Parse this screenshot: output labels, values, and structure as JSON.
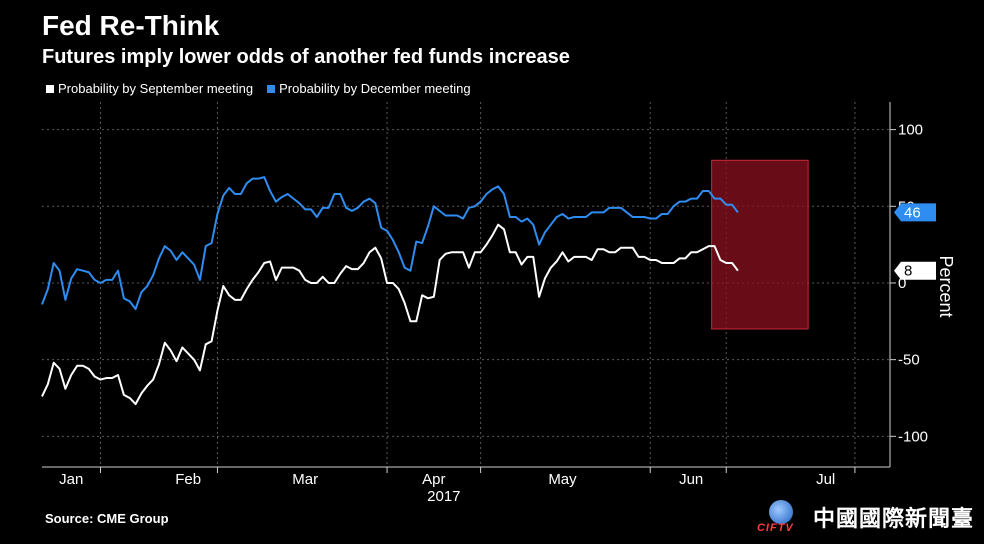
{
  "header": {
    "title": "Fed Re-Think",
    "subtitle": "Futures imply lower odds of another fed funds increase"
  },
  "legend": [
    {
      "label": "Probability by September meeting",
      "color": "#ffffff"
    },
    {
      "label": "Probability by December meeting",
      "color": "#2f8cf0"
    }
  ],
  "source": "Source: CME Group",
  "logo": {
    "abbr": "CIFTV",
    "text": "中國國際新聞臺"
  },
  "chart_data": {
    "type": "line",
    "title": "Fed Re-Think",
    "subtitle": "Futures imply lower odds of another fed funds increase",
    "ylabel": "Percent",
    "ylim": [
      -120,
      118
    ],
    "yticks": [
      {
        "value": 100,
        "label": "100"
      },
      {
        "value": 50,
        "label": "50"
      },
      {
        "value": 0,
        "label": "0"
      },
      {
        "value": -50,
        "label": "-50"
      },
      {
        "value": -100,
        "label": "-100"
      }
    ],
    "xlim": [
      0,
      145
    ],
    "xtick_labels": [
      {
        "x": 5,
        "label": "Jan"
      },
      {
        "x": 25,
        "label": "Feb"
      },
      {
        "x": 45,
        "label": "Mar"
      },
      {
        "x": 67,
        "label": "Apr"
      },
      {
        "x": 89,
        "label": "May"
      },
      {
        "x": 111,
        "label": "Jun"
      },
      {
        "x": 134,
        "label": "Jul"
      }
    ],
    "x_year_label": "2017",
    "month_boundaries": [
      10,
      30,
      59,
      75,
      104,
      117,
      139
    ],
    "highlight": {
      "x0": 114.5,
      "x1": 131,
      "y0": -30,
      "y1": 80,
      "color": "#8b1020"
    },
    "series": [
      {
        "name": "Probability by September meeting",
        "color": "#ffffff",
        "end_label": "8",
        "values": [
          -74,
          -66,
          -52,
          -56,
          -69,
          -60,
          -54,
          -54,
          -56,
          -61,
          -63,
          -62,
          -62,
          -60,
          -73,
          -75,
          -79,
          -72,
          -67,
          -63,
          -53,
          -39,
          -44,
          -51,
          -42,
          -46,
          -50,
          -57,
          -40,
          -38,
          -18,
          -2,
          -8,
          -11,
          -11,
          -4,
          2,
          7,
          13,
          14,
          2,
          10,
          10,
          10,
          8,
          2,
          0,
          0,
          4,
          0,
          0,
          6,
          11,
          9,
          9,
          13,
          20,
          23,
          16,
          0,
          0,
          -4,
          -13,
          -25,
          -25,
          -8,
          -10,
          -9,
          15,
          19,
          20,
          20,
          20,
          10,
          20,
          20,
          25,
          31,
          38,
          35,
          20,
          20,
          12,
          17,
          17,
          -9,
          3,
          10,
          14,
          20,
          14,
          17,
          17,
          17,
          15,
          22,
          22,
          20,
          20,
          23,
          23,
          23,
          17,
          17,
          15,
          15,
          13,
          13,
          13,
          16,
          16,
          20,
          20,
          22,
          24,
          24,
          15,
          13,
          13,
          8
        ]
      },
      {
        "name": "Probability by December meeting",
        "color": "#2f8cf0",
        "end_label": "46",
        "values": [
          -14,
          -4,
          13,
          8,
          -11,
          3,
          9,
          8,
          7,
          2,
          0,
          2,
          2,
          8,
          -10,
          -12,
          -17,
          -6,
          -2,
          5,
          16,
          24,
          21,
          15,
          20,
          16,
          12,
          2,
          24,
          26,
          45,
          57,
          62,
          58,
          58,
          65,
          68,
          68,
          69,
          60,
          53,
          56,
          58,
          55,
          52,
          48,
          48,
          43,
          49,
          49,
          58,
          58,
          49,
          47,
          49,
          53,
          55,
          52,
          36,
          34,
          28,
          20,
          10,
          8,
          27,
          26,
          37,
          50,
          47,
          44,
          44,
          44,
          42,
          49,
          50,
          53,
          58,
          61,
          63,
          58,
          43,
          43,
          40,
          42,
          38,
          25,
          33,
          38,
          43,
          45,
          42,
          43,
          43,
          43,
          46,
          46,
          46,
          49,
          49,
          49,
          46,
          43,
          43,
          43,
          42,
          42,
          45,
          45,
          50,
          53,
          53,
          55,
          55,
          60,
          60,
          55,
          55,
          51,
          51,
          46
        ]
      }
    ]
  }
}
